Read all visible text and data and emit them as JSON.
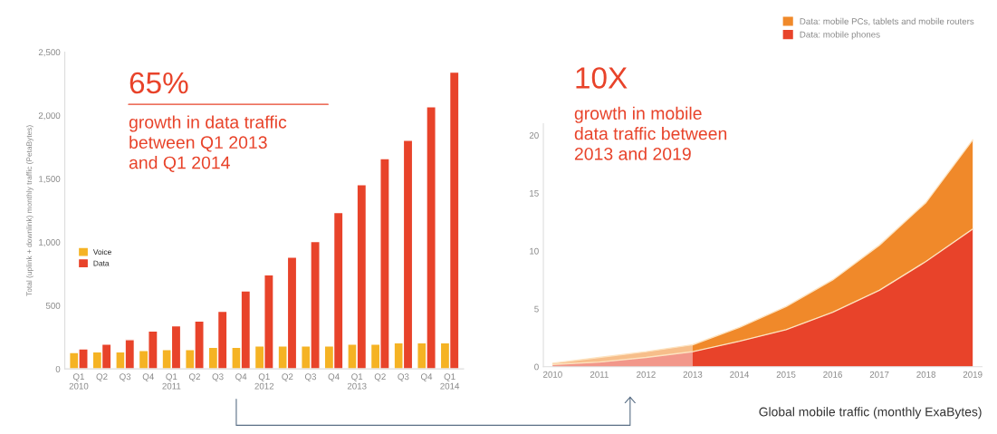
{
  "chart_data": [
    {
      "type": "bar",
      "ylabel": "Total (uplink + downlink) monthly traffic (PetaBytes)",
      "categories": [
        "Q1\n2010",
        "Q2",
        "Q3",
        "Q4",
        "Q1\n2011",
        "Q2",
        "Q3",
        "Q4",
        "Q1\n2012",
        "Q2",
        "Q3",
        "Q4",
        "Q1\n2013",
        "Q2",
        "Q3",
        "Q4",
        "Q1\n2014"
      ],
      "series": [
        {
          "name": "Voice",
          "color": "#f5b324",
          "values": [
            129,
            134,
            134,
            146,
            153,
            153,
            170,
            170,
            182,
            182,
            182,
            182,
            195,
            195,
            207,
            207,
            207
          ]
        },
        {
          "name": "Data",
          "color": "#e8432a",
          "values": [
            158,
            195,
            231,
            299,
            341,
            377,
            455,
            616,
            742,
            881,
            1005,
            1234,
            1453,
            1659,
            1805,
            2068,
            2343
          ]
        }
      ],
      "ylim": [
        0,
        2500
      ],
      "yticks": [
        {
          "value": 0,
          "label": "0"
        },
        {
          "value": 500,
          "label": "500"
        },
        {
          "value": 1000,
          "label": "1,000"
        },
        {
          "value": 1500,
          "label": "1,500"
        },
        {
          "value": 2000,
          "label": "2,000"
        },
        {
          "value": 2500,
          "label": "2,500"
        }
      ],
      "annotations": [
        "65%",
        "growth in data traffic\nbetween Q1 2013\nand Q1 2014"
      ],
      "legend": "left",
      "grid": false
    },
    {
      "type": "area",
      "stacked": true,
      "xlabel": "Global mobile traffic (monthly ExaBytes)",
      "x": [
        2010,
        2011,
        2012,
        2013,
        2014,
        2015,
        2016,
        2017,
        2018,
        2019
      ],
      "series": [
        {
          "name": "Data: mobile phones",
          "color": "#e8432a",
          "values": [
            0.2,
            0.4,
            0.8,
            1.3,
            2.2,
            3.2,
            4.7,
            6.6,
            9.1,
            11.9
          ]
        },
        {
          "name": "Data: mobile PCs, tablets and mobile routers",
          "color": "#f0892a",
          "values": [
            0.1,
            0.4,
            0.5,
            0.6,
            1.2,
            2.0,
            2.8,
            3.9,
            5.1,
            7.7
          ]
        }
      ],
      "xlim": [
        2009.8,
        2019.2
      ],
      "xticks": [
        2010,
        2011,
        2012,
        2013,
        2014,
        2015,
        2016,
        2017,
        2018,
        2019
      ],
      "ylim": [
        0,
        21
      ],
      "yticks": [
        0,
        5,
        10,
        15,
        20
      ],
      "bands": [
        {
          "axis": "x",
          "from": 2010,
          "to": 2013,
          "color": "#ffffff"
        }
      ],
      "annotations": [
        "10X",
        "growth in mobile\ndata traffic between\n2013 and 2019"
      ],
      "legend": "top right",
      "grid": false
    }
  ]
}
